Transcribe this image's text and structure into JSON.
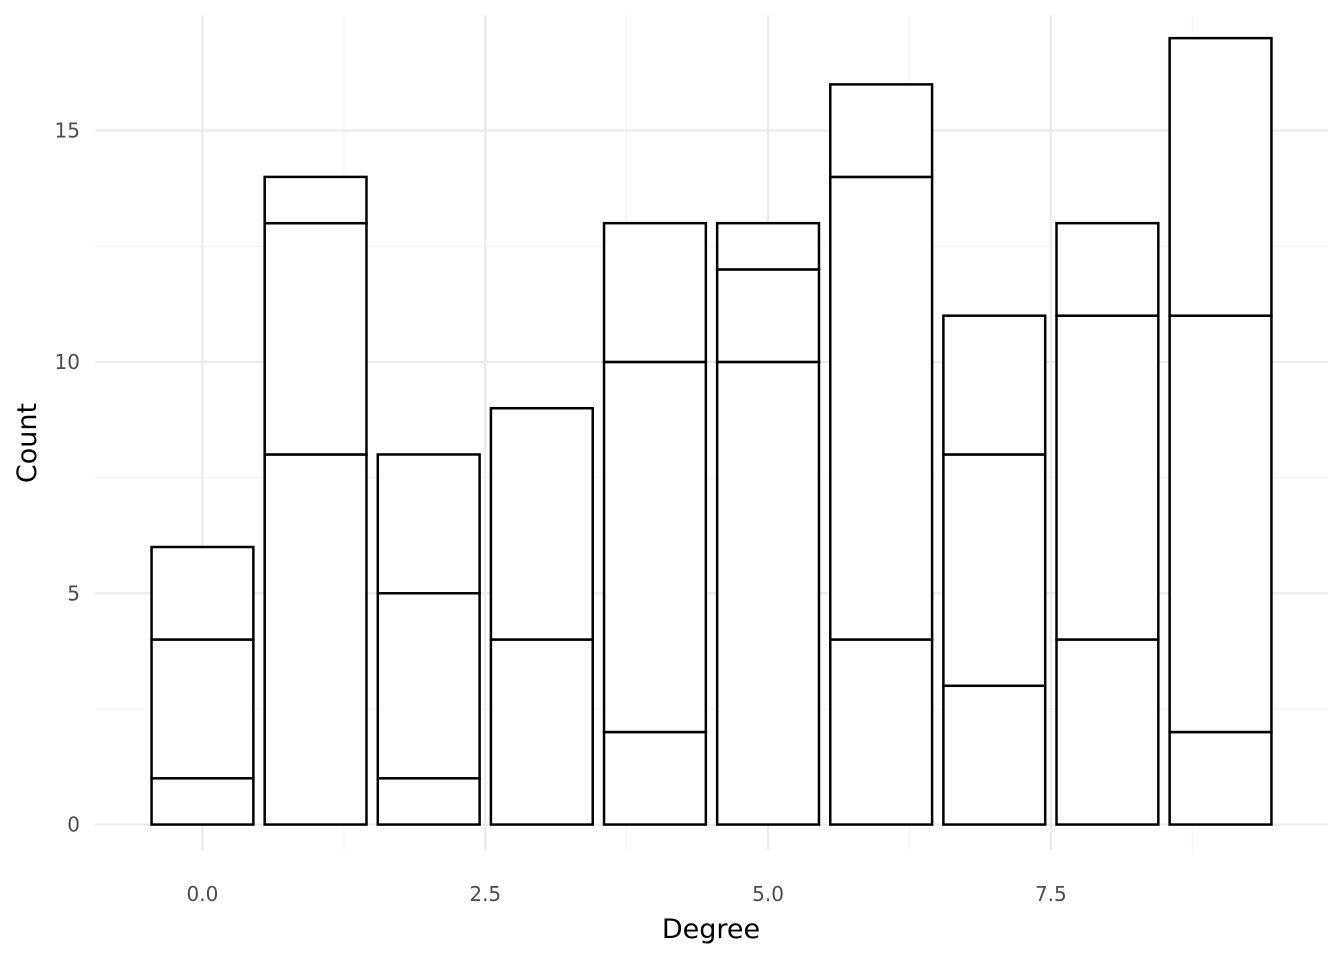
{
  "chart_data": {
    "type": "bar",
    "stacked": true,
    "title": "",
    "xlabel": "Degree",
    "ylabel": "Count",
    "x": [
      0,
      1,
      2,
      3,
      4,
      5,
      6,
      7,
      8,
      9
    ],
    "stacks": [
      [
        1,
        3,
        2
      ],
      [
        8,
        5,
        1
      ],
      [
        1,
        4,
        3
      ],
      [
        4,
        5
      ],
      [
        2,
        8,
        3
      ],
      [
        10,
        2,
        1
      ],
      [
        4,
        10,
        2
      ],
      [
        3,
        5,
        3
      ],
      [
        4,
        7,
        2
      ],
      [
        2,
        9,
        6
      ]
    ],
    "totals": [
      6,
      14,
      8,
      9,
      13,
      13,
      16,
      11,
      13,
      17
    ],
    "bar_fill": "#ffffff",
    "bar_stroke": "#000000",
    "xlim": [
      -0.95,
      9.95
    ],
    "ylim": [
      -0.55,
      17.5
    ],
    "x_ticks": [
      0.0,
      2.5,
      5.0,
      7.5
    ],
    "x_tick_labels": [
      "0.0",
      "2.5",
      "5.0",
      "7.5"
    ],
    "y_ticks": [
      0,
      5,
      10,
      15
    ],
    "y_tick_labels": [
      "0",
      "5",
      "10",
      "15"
    ],
    "grid": true,
    "legend": "none"
  }
}
